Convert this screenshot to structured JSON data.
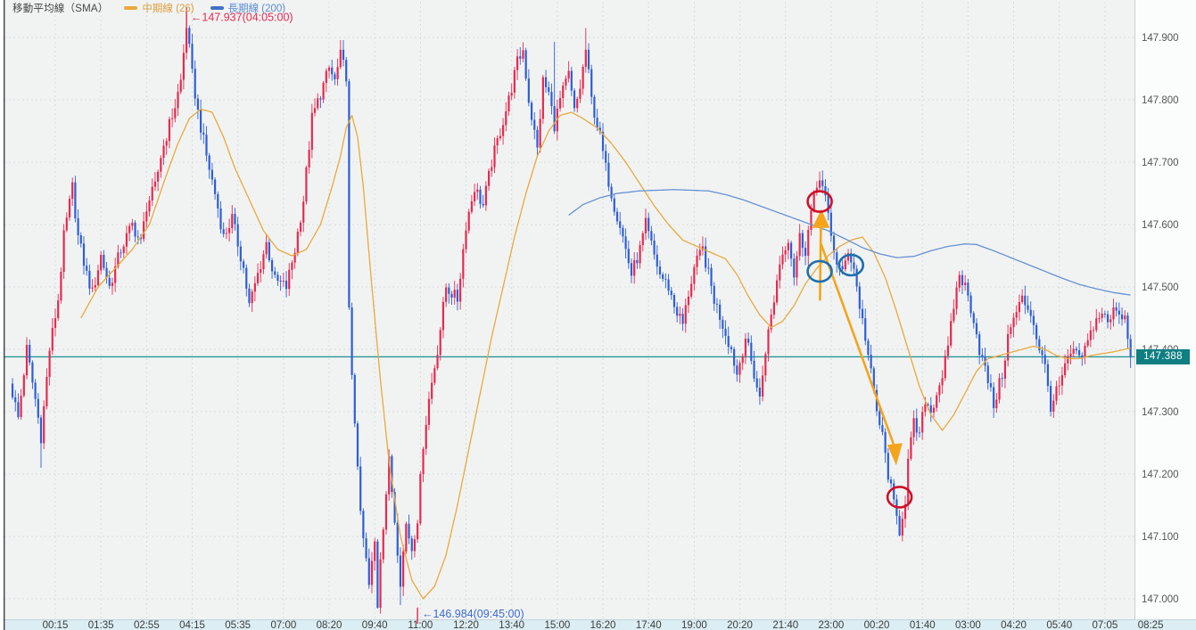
{
  "legend": {
    "title": "移動平均線（SMA）",
    "mid_label": "中期線 (26)",
    "long_label": "長期線 (200)"
  },
  "current_price": {
    "value": "147.388"
  },
  "colors": {
    "up_candle": "#e62a4f",
    "down_candle": "#2e5ed6",
    "sma26_line": "#eba93b",
    "sma200_line": "#6590d2",
    "price_line": "#2b9494",
    "price_badge_bg": "#107f82",
    "plot_bg": "#f1f3f3",
    "right_axis_bg": "#fbfcfc",
    "bottom_axis_bg": "#dceef3",
    "grid": "#d6dcdd",
    "axis_text": "#3c3c3c",
    "y_axis_text": "#555555",
    "left_border": "#3c4043",
    "high_annotation": "#e8294f",
    "low_annotation": "#3a6bd0",
    "circle_red": "#cf1126",
    "circle_blue": "#1d6fae",
    "arrow_orange": "#f5a41c"
  },
  "axes": {
    "x_ticks": [
      "00:15",
      "01:35",
      "02:55",
      "04:15",
      "05:35",
      "07:00",
      "08:20",
      "09:40",
      "11:00",
      "12:20",
      "13:40",
      "15:00",
      "16:20",
      "17:40",
      "19:00",
      "20:20",
      "21:40",
      "23:00",
      "00:20",
      "01:40",
      "03:00",
      "04:20",
      "05:40",
      "07:05",
      "08:25"
    ],
    "y_ticks": [
      "147.900",
      "147.800",
      "147.700",
      "147.600",
      "147.500",
      "147.400",
      "147.300",
      "147.200",
      "147.100",
      "147.000"
    ]
  },
  "chart_data": {
    "type": "candlestick",
    "title": "移動平均線（SMA）",
    "legend_entries": [
      "中期線 (26)",
      "長期線 (200)"
    ],
    "ylim": [
      146.95,
      147.96
    ],
    "grid_step": 0.1,
    "n_candles": 393,
    "candles_per_tick": 16,
    "first_tick_index": 15,
    "session_high": {
      "price": 147.937,
      "time": "04:05:00"
    },
    "session_low": {
      "price": 146.984,
      "time": "09:45:00"
    },
    "last_price": 147.388,
    "close_anchors": [
      [
        0,
        147.33
      ],
      [
        2,
        147.29
      ],
      [
        5,
        147.4
      ],
      [
        8,
        147.32
      ],
      [
        10,
        147.26
      ],
      [
        13,
        147.4
      ],
      [
        16,
        147.48
      ],
      [
        18,
        147.58
      ],
      [
        21,
        147.66
      ],
      [
        23,
        147.58
      ],
      [
        26,
        147.52
      ],
      [
        28,
        147.49
      ],
      [
        31,
        147.55
      ],
      [
        34,
        147.5
      ],
      [
        38,
        147.56
      ],
      [
        42,
        147.6
      ],
      [
        45,
        147.57
      ],
      [
        47,
        147.63
      ],
      [
        50,
        147.66
      ],
      [
        52,
        147.71
      ],
      [
        55,
        147.76
      ],
      [
        57,
        147.79
      ],
      [
        59,
        147.83
      ],
      [
        61,
        147.92
      ],
      [
        63,
        147.84
      ],
      [
        65,
        147.78
      ],
      [
        68,
        147.71
      ],
      [
        71,
        147.65
      ],
      [
        74,
        147.58
      ],
      [
        77,
        147.61
      ],
      [
        81,
        147.53
      ],
      [
        83,
        147.47
      ],
      [
        86,
        147.52
      ],
      [
        89,
        147.57
      ],
      [
        92,
        147.51
      ],
      [
        96,
        147.5
      ],
      [
        99,
        147.56
      ],
      [
        102,
        147.64
      ],
      [
        105,
        147.77
      ],
      [
        108,
        147.81
      ],
      [
        111,
        147.85
      ],
      [
        113,
        147.83
      ],
      [
        115,
        147.87
      ],
      [
        117,
        147.84
      ],
      [
        118,
        147.46
      ],
      [
        119,
        147.35
      ],
      [
        121,
        147.22
      ],
      [
        122,
        147.13
      ],
      [
        124,
        147.06
      ],
      [
        125,
        147.02
      ],
      [
        127,
        147.09
      ],
      [
        128,
        146.99
      ],
      [
        129,
        147.07
      ],
      [
        131,
        147.17
      ],
      [
        132,
        147.22
      ],
      [
        135,
        147.08
      ],
      [
        136,
        147.03
      ],
      [
        138,
        147.12
      ],
      [
        140,
        147.08
      ],
      [
        142,
        147.13
      ],
      [
        144,
        147.25
      ],
      [
        146,
        147.32
      ],
      [
        149,
        147.4
      ],
      [
        152,
        147.5
      ],
      [
        156,
        147.48
      ],
      [
        159,
        147.6
      ],
      [
        162,
        147.66
      ],
      [
        165,
        147.63
      ],
      [
        168,
        147.7
      ],
      [
        171,
        147.75
      ],
      [
        174,
        147.8
      ],
      [
        177,
        147.86
      ],
      [
        179,
        147.88
      ],
      [
        181,
        147.8
      ],
      [
        184,
        147.72
      ],
      [
        186,
        147.83
      ],
      [
        188,
        147.81
      ],
      [
        190,
        147.76
      ],
      [
        192,
        147.8
      ],
      [
        195,
        147.84
      ],
      [
        197,
        147.78
      ],
      [
        199,
        147.82
      ],
      [
        201,
        147.88
      ],
      [
        203,
        147.8
      ],
      [
        206,
        147.74
      ],
      [
        208,
        147.69
      ],
      [
        211,
        147.63
      ],
      [
        213,
        147.6
      ],
      [
        215,
        147.56
      ],
      [
        217,
        147.52
      ],
      [
        220,
        147.56
      ],
      [
        222,
        147.6
      ],
      [
        225,
        147.55
      ],
      [
        227,
        147.52
      ],
      [
        230,
        147.5
      ],
      [
        232,
        147.47
      ],
      [
        235,
        147.44
      ],
      [
        237,
        147.49
      ],
      [
        239,
        147.53
      ],
      [
        242,
        147.56
      ],
      [
        244,
        147.52
      ],
      [
        246,
        147.48
      ],
      [
        249,
        147.44
      ],
      [
        252,
        147.4
      ],
      [
        254,
        147.36
      ],
      [
        257,
        147.42
      ],
      [
        259,
        147.38
      ],
      [
        262,
        147.32
      ],
      [
        264,
        147.4
      ],
      [
        267,
        147.48
      ],
      [
        269,
        147.54
      ],
      [
        272,
        147.58
      ],
      [
        274,
        147.52
      ],
      [
        276,
        147.58
      ],
      [
        278,
        147.56
      ],
      [
        280,
        147.62
      ],
      [
        283,
        147.68
      ],
      [
        285,
        147.64
      ],
      [
        287,
        147.58
      ],
      [
        289,
        147.54
      ],
      [
        291,
        147.52
      ],
      [
        293,
        147.56
      ],
      [
        295,
        147.53
      ],
      [
        297,
        147.47
      ],
      [
        299,
        147.42
      ],
      [
        301,
        147.36
      ],
      [
        303,
        147.3
      ],
      [
        305,
        147.26
      ],
      [
        307,
        147.2
      ],
      [
        309,
        147.15
      ],
      [
        311,
        147.11
      ],
      [
        313,
        147.16
      ],
      [
        314,
        147.22
      ],
      [
        316,
        147.28
      ],
      [
        318,
        147.26
      ],
      [
        320,
        147.32
      ],
      [
        322,
        147.3
      ],
      [
        324,
        147.33
      ],
      [
        326,
        147.36
      ],
      [
        328,
        147.4
      ],
      [
        330,
        147.47
      ],
      [
        332,
        147.52
      ],
      [
        334,
        147.5
      ],
      [
        337,
        147.45
      ],
      [
        339,
        147.4
      ],
      [
        342,
        147.35
      ],
      [
        344,
        147.31
      ],
      [
        347,
        147.36
      ],
      [
        349,
        147.42
      ],
      [
        352,
        147.46
      ],
      [
        354,
        147.48
      ],
      [
        357,
        147.46
      ],
      [
        359,
        147.42
      ],
      [
        362,
        147.37
      ],
      [
        364,
        147.31
      ],
      [
        367,
        147.34
      ],
      [
        369,
        147.37
      ],
      [
        372,
        147.4
      ],
      [
        374,
        147.38
      ],
      [
        377,
        147.41
      ],
      [
        379,
        147.44
      ],
      [
        382,
        147.46
      ],
      [
        384,
        147.44
      ],
      [
        387,
        147.47
      ],
      [
        389,
        147.45
      ],
      [
        390,
        147.46
      ],
      [
        392,
        147.388
      ]
    ],
    "forced_highs": [
      [
        61,
        147.937
      ],
      [
        190,
        147.893
      ],
      [
        201,
        147.915
      ]
    ],
    "forced_lows": [
      [
        10,
        147.21
      ],
      [
        128,
        146.984
      ],
      [
        136,
        146.99
      ],
      [
        311,
        147.1
      ],
      [
        392,
        147.37
      ]
    ],
    "sma26": [
      [
        24,
        147.45
      ],
      [
        30,
        147.5
      ],
      [
        36,
        147.53
      ],
      [
        42,
        147.56
      ],
      [
        48,
        147.6
      ],
      [
        54,
        147.68
      ],
      [
        58,
        147.73
      ],
      [
        62,
        147.77
      ],
      [
        66,
        147.785
      ],
      [
        70,
        147.78
      ],
      [
        74,
        147.74
      ],
      [
        78,
        147.69
      ],
      [
        83,
        147.64
      ],
      [
        88,
        147.59
      ],
      [
        93,
        147.56
      ],
      [
        98,
        147.55
      ],
      [
        103,
        147.56
      ],
      [
        108,
        147.6
      ],
      [
        112,
        147.66
      ],
      [
        115,
        147.71
      ],
      [
        117,
        147.755
      ],
      [
        119,
        147.775
      ],
      [
        121,
        147.74
      ],
      [
        123,
        147.66
      ],
      [
        126,
        147.5
      ],
      [
        129,
        147.35
      ],
      [
        132,
        147.22
      ],
      [
        136,
        147.1
      ],
      [
        140,
        147.03
      ],
      [
        144,
        147.0
      ],
      [
        148,
        147.02
      ],
      [
        152,
        147.07
      ],
      [
        156,
        147.15
      ],
      [
        160,
        147.24
      ],
      [
        164,
        147.33
      ],
      [
        168,
        147.42
      ],
      [
        172,
        147.5
      ],
      [
        176,
        147.58
      ],
      [
        180,
        147.65
      ],
      [
        184,
        147.71
      ],
      [
        188,
        147.75
      ],
      [
        192,
        147.775
      ],
      [
        196,
        147.78
      ],
      [
        200,
        147.77
      ],
      [
        205,
        147.755
      ],
      [
        210,
        147.73
      ],
      [
        215,
        147.7
      ],
      [
        220,
        147.665
      ],
      [
        225,
        147.63
      ],
      [
        230,
        147.6
      ],
      [
        235,
        147.575
      ],
      [
        240,
        147.565
      ],
      [
        245,
        147.555
      ],
      [
        250,
        147.545
      ],
      [
        254,
        147.52
      ],
      [
        258,
        147.485
      ],
      [
        262,
        147.455
      ],
      [
        266,
        147.435
      ],
      [
        270,
        147.445
      ],
      [
        274,
        147.47
      ],
      [
        278,
        147.505
      ],
      [
        282,
        147.53
      ],
      [
        286,
        147.55
      ],
      [
        290,
        147.565
      ],
      [
        294,
        147.575
      ],
      [
        298,
        147.58
      ],
      [
        302,
        147.555
      ],
      [
        306,
        147.515
      ],
      [
        310,
        147.46
      ],
      [
        314,
        147.4
      ],
      [
        318,
        147.34
      ],
      [
        322,
        147.295
      ],
      [
        326,
        147.27
      ],
      [
        330,
        147.295
      ],
      [
        334,
        147.33
      ],
      [
        338,
        147.365
      ],
      [
        342,
        147.385
      ],
      [
        346,
        147.39
      ],
      [
        350,
        147.395
      ],
      [
        354,
        147.4
      ],
      [
        358,
        147.405
      ],
      [
        362,
        147.4
      ],
      [
        366,
        147.39
      ],
      [
        370,
        147.385
      ],
      [
        374,
        147.385
      ],
      [
        378,
        147.39
      ],
      [
        382,
        147.393
      ],
      [
        386,
        147.396
      ],
      [
        390,
        147.4
      ],
      [
        392,
        147.402
      ]
    ],
    "sma200": [
      [
        195,
        147.615
      ],
      [
        200,
        147.632
      ],
      [
        206,
        147.643
      ],
      [
        212,
        147.65
      ],
      [
        220,
        147.654
      ],
      [
        232,
        147.656
      ],
      [
        244,
        147.654
      ],
      [
        250,
        147.648
      ],
      [
        256,
        147.64
      ],
      [
        262,
        147.63
      ],
      [
        268,
        147.62
      ],
      [
        274,
        147.61
      ],
      [
        280,
        147.6
      ],
      [
        286,
        147.59
      ],
      [
        292,
        147.577
      ],
      [
        298,
        147.563
      ],
      [
        304,
        147.553
      ],
      [
        310,
        147.547
      ],
      [
        316,
        147.549
      ],
      [
        322,
        147.558
      ],
      [
        328,
        147.565
      ],
      [
        334,
        147.569
      ],
      [
        338,
        147.568
      ],
      [
        344,
        147.558
      ],
      [
        350,
        147.547
      ],
      [
        356,
        147.536
      ],
      [
        362,
        147.525
      ],
      [
        368,
        147.514
      ],
      [
        374,
        147.504
      ],
      [
        380,
        147.497
      ],
      [
        386,
        147.491
      ],
      [
        392,
        147.487
      ]
    ],
    "annotations": {
      "high_label": {
        "text": "←147.937(04:05:00)",
        "i": 62.5,
        "p": 147.932
      },
      "high_tick": {
        "i": 61,
        "p1": 147.948,
        "p2": 147.916
      },
      "low_label": {
        "text": "←146.984(09:45:00)",
        "i": 143.5,
        "p": 146.976
      },
      "low_tick": {
        "i": 142,
        "p1": 146.986,
        "p2": 146.96
      },
      "circles": [
        {
          "i": 283,
          "p": 147.637,
          "color": "red"
        },
        {
          "i": 283,
          "p": 147.525,
          "color": "blue"
        },
        {
          "i": 294,
          "p": 147.535,
          "color": "blue"
        },
        {
          "i": 311,
          "p": 147.163,
          "color": "red"
        }
      ],
      "arrows": [
        {
          "from": [
            283.1,
            147.478
          ],
          "to": [
            283.4,
            147.596
          ],
          "head": "up"
        },
        {
          "from": [
            283.3,
            147.571
          ],
          "to": [
            309.2,
            147.244
          ],
          "head": "down"
        }
      ]
    }
  }
}
